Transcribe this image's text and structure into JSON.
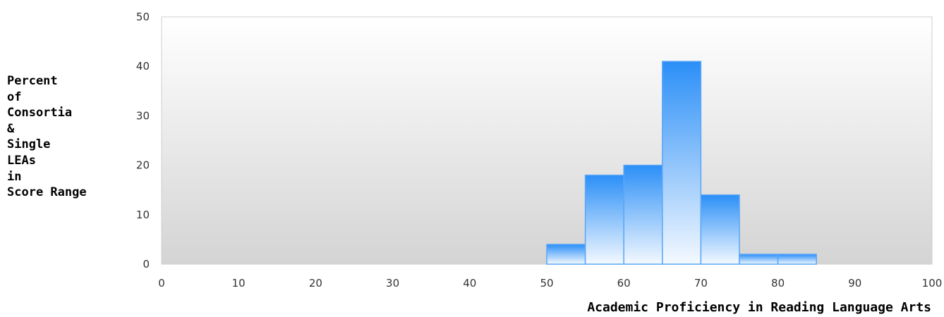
{
  "chart_data": {
    "type": "bar",
    "xlabel": "Academic Proficiency in Reading Language Arts",
    "ylabel_lines": [
      "Percent",
      "of",
      "Consortia",
      "&",
      "Single",
      "LEAs",
      "in",
      "Score Range"
    ],
    "xlim": [
      0,
      100
    ],
    "ylim": [
      0,
      50
    ],
    "x_ticks": [
      "0",
      "10",
      "20",
      "30",
      "40",
      "50",
      "60",
      "70",
      "80",
      "90",
      "100"
    ],
    "y_ticks": [
      "0",
      "10",
      "20",
      "30",
      "40",
      "50"
    ],
    "bins": [
      {
        "start": 50,
        "end": 55,
        "value": 4
      },
      {
        "start": 55,
        "end": 60,
        "value": 18
      },
      {
        "start": 60,
        "end": 65,
        "value": 20
      },
      {
        "start": 65,
        "end": 70,
        "value": 41
      },
      {
        "start": 70,
        "end": 75,
        "value": 14
      },
      {
        "start": 75,
        "end": 80,
        "value": 2
      },
      {
        "start": 80,
        "end": 85,
        "value": 2
      }
    ],
    "grid": false,
    "bar_color_top": "#2b8ff7",
    "bar_color_bottom": "#f4f9ff",
    "bar_stroke": "#5aa6f7"
  }
}
